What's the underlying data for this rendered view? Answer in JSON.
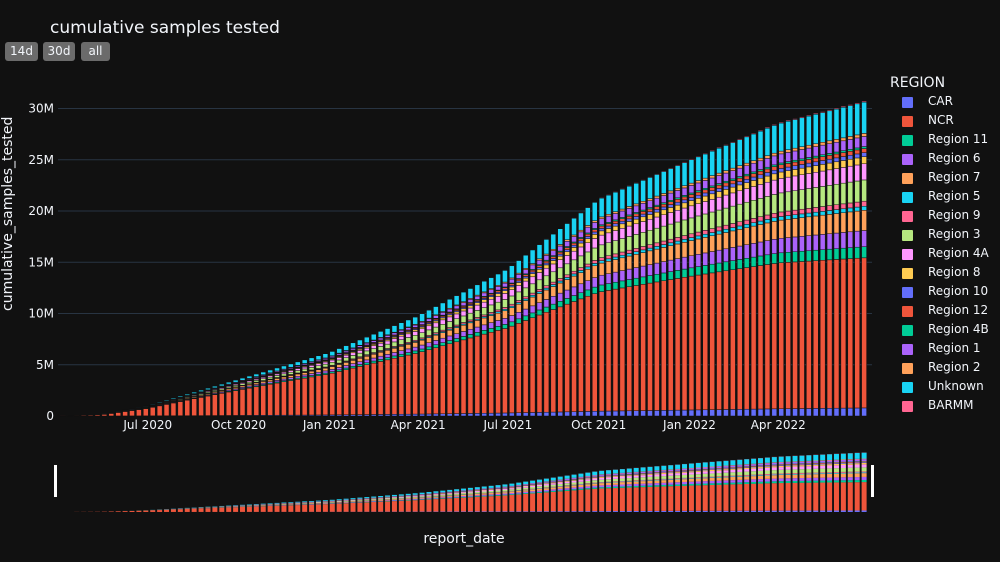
{
  "title": "cumulative samples tested",
  "range_buttons": [
    "14d",
    "30d",
    "all"
  ],
  "colors": {
    "background": "#111111",
    "gridline": "#283442",
    "text": "#f2f5fa",
    "button": "#6b6b6b",
    "range_handle": "#ffffff"
  },
  "legend": {
    "title": "REGION",
    "placement": "right",
    "items": [
      {
        "label": "CAR",
        "color": "#636efa"
      },
      {
        "label": "NCR",
        "color": "#ef553b"
      },
      {
        "label": "Region 11",
        "color": "#00cc96"
      },
      {
        "label": "Region 6",
        "color": "#ab63fa"
      },
      {
        "label": "Region 7",
        "color": "#ffa15a"
      },
      {
        "label": "Region 5",
        "color": "#19d3f3"
      },
      {
        "label": "Region 9",
        "color": "#ff6692"
      },
      {
        "label": "Region 3",
        "color": "#b6e880"
      },
      {
        "label": "Region 4A",
        "color": "#ff97ff"
      },
      {
        "label": "Region 8",
        "color": "#fecb52"
      },
      {
        "label": "Region 10",
        "color": "#636efa"
      },
      {
        "label": "Region 12",
        "color": "#ef553b"
      },
      {
        "label": "Region 4B",
        "color": "#00cc96"
      },
      {
        "label": "Region 1",
        "color": "#ab63fa"
      },
      {
        "label": "Region 2",
        "color": "#ffa15a"
      },
      {
        "label": "Unknown",
        "color": "#19d3f3"
      },
      {
        "label": "BARMM",
        "color": "#ff6692"
      }
    ]
  },
  "chart_data": {
    "type": "bar",
    "stacked": true,
    "title": "cumulative samples tested",
    "xlabel": "report_date",
    "ylabel": "cumulative_samples_tested",
    "x_range": [
      "2020-04-01",
      "2022-07-05"
    ],
    "ylim": [
      0,
      32000000
    ],
    "yticks": [
      0,
      5000000,
      10000000,
      15000000,
      20000000,
      25000000,
      30000000
    ],
    "ytick_labels": [
      "0",
      "5M",
      "10M",
      "15M",
      "20M",
      "25M",
      "30M"
    ],
    "xticks": [
      "2020-07-01",
      "2020-10-01",
      "2021-01-01",
      "2021-04-01",
      "2021-07-01",
      "2021-10-01",
      "2022-01-01",
      "2022-04-01"
    ],
    "xtick_labels": [
      "Jul 2020",
      "Oct 2020",
      "Jan 2021",
      "Apr 2021",
      "Jul 2021",
      "Oct 2021",
      "Jan 2022",
      "Apr 2022"
    ],
    "grid": true,
    "rangeslider": true,
    "bar_interval": "weekly",
    "approx_totals_by_date": [
      {
        "date": "2020-04-01",
        "total": 0
      },
      {
        "date": "2020-05-15",
        "total": 150000
      },
      {
        "date": "2020-07-01",
        "total": 1000000
      },
      {
        "date": "2020-10-01",
        "total": 3600000
      },
      {
        "date": "2021-01-01",
        "total": 6200000
      },
      {
        "date": "2021-04-01",
        "total": 9800000
      },
      {
        "date": "2021-07-01",
        "total": 14400000
      },
      {
        "date": "2021-10-01",
        "total": 21200000
      },
      {
        "date": "2022-01-01",
        "total": 25000000
      },
      {
        "date": "2022-04-01",
        "total": 28600000
      },
      {
        "date": "2022-06-30",
        "total": 30800000
      }
    ],
    "series_final_values": [
      {
        "name": "CAR",
        "value": 800000
      },
      {
        "name": "NCR",
        "value": 14800000
      },
      {
        "name": "Region 11",
        "value": 1100000
      },
      {
        "name": "Region 6",
        "value": 1600000
      },
      {
        "name": "Region 7",
        "value": 2000000
      },
      {
        "name": "Region 5",
        "value": 400000
      },
      {
        "name": "Region 9",
        "value": 500000
      },
      {
        "name": "Region 3",
        "value": 2100000
      },
      {
        "name": "Region 4A",
        "value": 1600000
      },
      {
        "name": "Region 8",
        "value": 700000
      },
      {
        "name": "Region 10",
        "value": 400000
      },
      {
        "name": "Region 12",
        "value": 400000
      },
      {
        "name": "Region 4B",
        "value": 200000
      },
      {
        "name": "Region 1",
        "value": 1000000
      },
      {
        "name": "Region 2",
        "value": 300000
      },
      {
        "name": "Unknown",
        "value": 3100000
      },
      {
        "name": "BARMM",
        "value": 100000
      }
    ]
  }
}
